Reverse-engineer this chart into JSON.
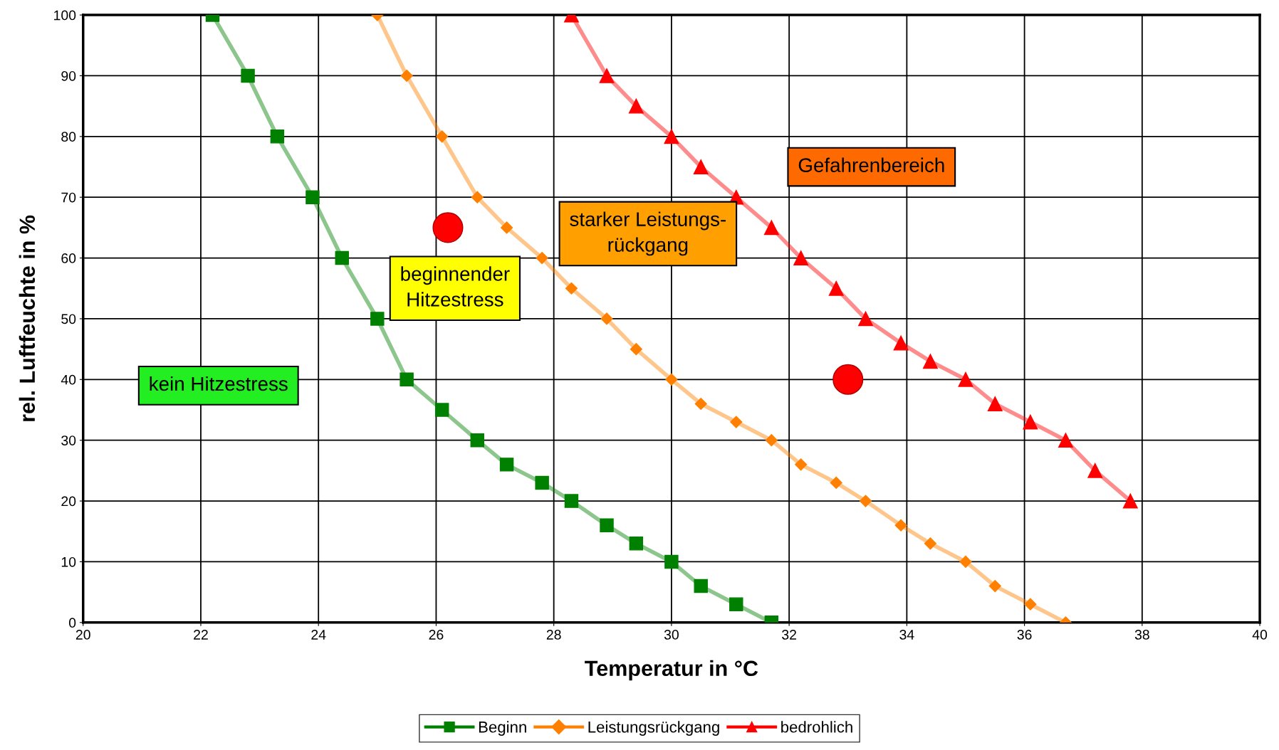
{
  "chart_data": {
    "type": "line",
    "xlabel": "Temperatur in °C",
    "ylabel": "rel. Luftfeuchte in %",
    "xlim": [
      20,
      40
    ],
    "xticks": [
      20,
      22,
      24,
      26,
      28,
      30,
      32,
      34,
      36,
      38,
      40
    ],
    "ylim": [
      0,
      100
    ],
    "yticks": [
      0,
      10,
      20,
      30,
      40,
      50,
      60,
      70,
      80,
      90,
      100
    ],
    "grid": true,
    "legend": "bottom",
    "series": [
      {
        "name": "Beginn",
        "color": "#008000",
        "marker": "square",
        "x": [
          22.2,
          22.8,
          23.3,
          23.9,
          24.4,
          25.0,
          25.5,
          26.1,
          26.7,
          27.2,
          27.8,
          28.3,
          28.9,
          29.4,
          30.0,
          30.5,
          31.1,
          31.7
        ],
        "values": [
          100,
          90,
          80,
          70,
          60,
          50,
          40,
          35,
          30,
          26,
          23,
          20,
          16,
          13,
          10,
          6,
          3,
          0
        ]
      },
      {
        "name": "Leistungsrückgang",
        "color": "#ff8000",
        "marker": "diamond",
        "x": [
          25.0,
          25.5,
          26.1,
          26.7,
          27.2,
          27.8,
          28.3,
          28.9,
          29.4,
          30.0,
          30.5,
          31.1,
          31.7,
          32.2,
          32.8,
          33.3,
          33.9,
          34.4,
          35.0,
          35.5,
          36.1,
          36.7
        ],
        "values": [
          100,
          90,
          80,
          70,
          65,
          60,
          55,
          50,
          45,
          40,
          36,
          33,
          30,
          26,
          23,
          20,
          16,
          13,
          10,
          6,
          3,
          0
        ]
      },
      {
        "name": "bedrohlich",
        "color": "#ff0000",
        "marker": "triangle",
        "x": [
          28.3,
          28.9,
          29.4,
          30.0,
          30.5,
          31.1,
          31.7,
          32.2,
          32.8,
          33.3,
          33.9,
          34.4,
          35.0,
          35.5,
          36.1,
          36.7,
          37.2,
          37.8
        ],
        "values": [
          100,
          90,
          85,
          80,
          75,
          70,
          65,
          60,
          55,
          50,
          46,
          43,
          40,
          36,
          33,
          30,
          25,
          20
        ]
      },
      {
        "type": "scatter",
        "color": "#ff0000",
        "marker": "circle",
        "x": [
          26.2,
          33.0
        ],
        "values": [
          65,
          40
        ]
      }
    ],
    "annotations": [
      "kein Hitzestress",
      "beginnender\nHitzestress",
      "starker Leistungs-\nrückgang",
      "Gefahrenbereich"
    ]
  }
}
